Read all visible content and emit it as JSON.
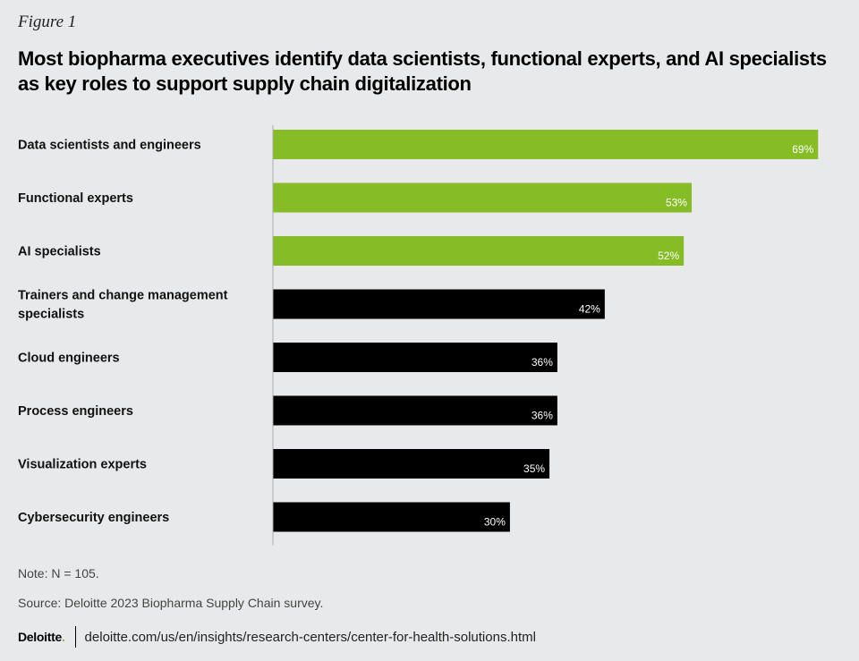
{
  "figure_label": "Figure 1",
  "title": "Most biopharma executives identify data scientists, functional experts, and AI specialists as key roles to support supply chain digitalization",
  "note": "Note: N = 105.",
  "source": "Source: Deloitte 2023 Biopharma Supply Chain survey.",
  "footer": {
    "logo_text": "Deloitte",
    "logo_dot": ".",
    "url": "deloitte.com/us/en/insights/research-centers/center-for-health-solutions.html"
  },
  "colors": {
    "highlight": "#86bc25",
    "default": "#000000",
    "background": "#e8e9ea",
    "axis": "#aaaaaa"
  },
  "chart_data": {
    "type": "bar",
    "orientation": "horizontal",
    "title": "Most biopharma executives identify data scientists, functional experts, and AI specialists as key roles to support supply chain digitalization",
    "xlabel": "",
    "ylabel": "",
    "xlim": [
      0,
      100
    ],
    "unit": "%",
    "categories": [
      [
        "Data scientists and engineers"
      ],
      [
        "Functional experts"
      ],
      [
        "AI specialists"
      ],
      [
        "Trainers and change management",
        "specialists"
      ],
      [
        "Cloud engineers"
      ],
      [
        "Process engineers"
      ],
      [
        "Visualization experts"
      ],
      [
        "Cybersecurity engineers"
      ]
    ],
    "values": [
      69,
      53,
      52,
      42,
      36,
      36,
      35,
      30
    ],
    "value_labels": [
      "69%",
      "53%",
      "52%",
      "42%",
      "36%",
      "36%",
      "35%",
      "30%"
    ],
    "highlighted": [
      true,
      true,
      true,
      false,
      false,
      false,
      false,
      false
    ]
  }
}
